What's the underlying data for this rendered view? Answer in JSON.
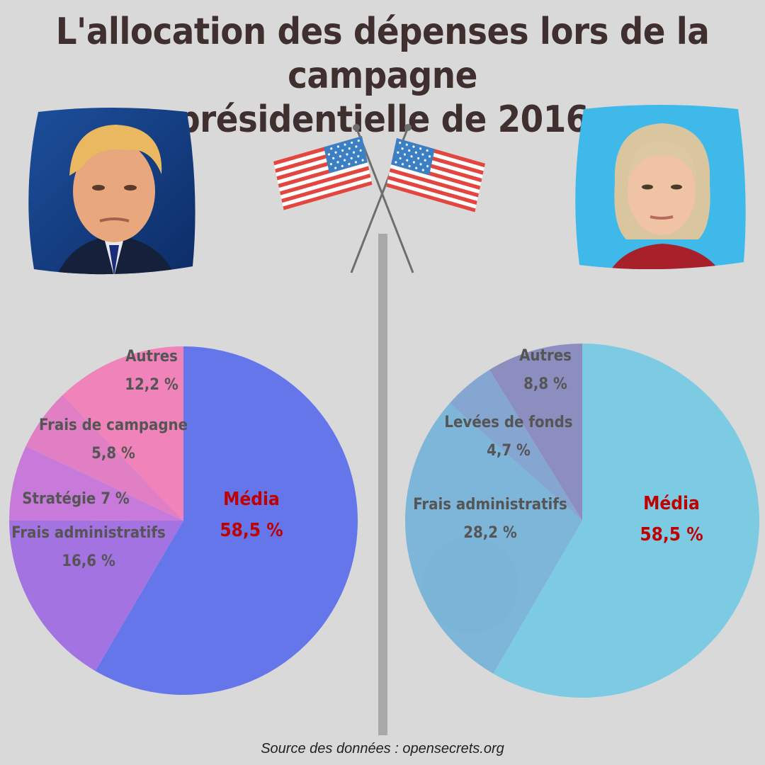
{
  "title": {
    "line1": "L'allocation des dépenses lors de la campagne",
    "line2": "présidentielle de 2016"
  },
  "source": "Source des données : opensecrets.org",
  "colors": {
    "background": "#d9d9d9",
    "title": "#3f2f2f",
    "divider": "#a9a9a9",
    "media_label": "#c00000",
    "slice_label": "#555555"
  },
  "chart_data": [
    {
      "type": "pie",
      "side": "left",
      "slices": [
        {
          "name": "Média",
          "value": 58.5,
          "value_label": "58,5 %",
          "color": "#6476ea",
          "highlight": true
        },
        {
          "name": "Frais administratifs",
          "value": 16.6,
          "value_label": "16,6 %",
          "color": "#a373e2"
        },
        {
          "name": "Stratégie",
          "value": 7,
          "value_label": "7 %",
          "color": "#c77ad9"
        },
        {
          "name": "Frais de campagne",
          "value": 5.8,
          "value_label": "5,8 %",
          "color": "#e07fc4"
        },
        {
          "name": "Autres",
          "value": 12.2,
          "value_label": "12,2 %",
          "color": "#f083b9"
        }
      ]
    },
    {
      "type": "pie",
      "side": "right",
      "slices": [
        {
          "name": "Média",
          "value": 58.5,
          "value_label": "58,5 %",
          "color": "#7ccbe3",
          "highlight": true
        },
        {
          "name": "Frais administratifs",
          "value": 28.2,
          "value_label": "28,2 %",
          "color": "#7eb6da"
        },
        {
          "name": "Levées de fonds",
          "value": 4.7,
          "value_label": "4,7 %",
          "color": "#84a6d0"
        },
        {
          "name": "Autres",
          "value": 8.8,
          "value_label": "8,8 %",
          "color": "#8d8ec0"
        }
      ]
    }
  ]
}
